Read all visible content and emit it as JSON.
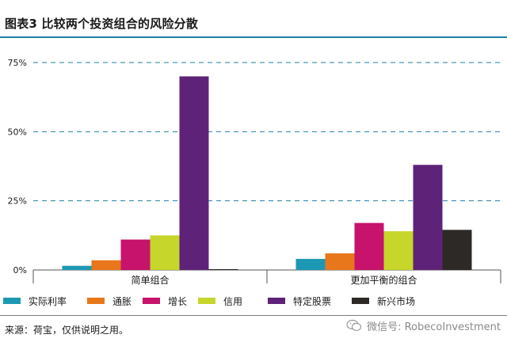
{
  "title": "图表3 比较两个投资组合的风险分散",
  "source": "来源：荷宝，仅供说明之用。",
  "watermark": {
    "text": "微信号: RobecoInvestment",
    "icon": "wechat-icon"
  },
  "colors": {
    "title_rule": "#1e7fa8",
    "grid": "#1e7fa8"
  },
  "chart_data": {
    "type": "bar",
    "title": "图表3 比较两个投资组合的风险分散",
    "xlabel": "",
    "ylabel": "",
    "categories": [
      "简单组合",
      "更加平衡的组合"
    ],
    "ylim": [
      0,
      75
    ],
    "yticks": [
      0,
      25,
      50,
      75
    ],
    "ytick_labels": [
      "0%",
      "25%",
      "50%",
      "75%"
    ],
    "grid": "dashed horizontal",
    "legend_position": "bottom",
    "series": [
      {
        "name": "实际利率",
        "color": "#1d98b4",
        "values": [
          1.5,
          4
        ]
      },
      {
        "name": "通胀",
        "color": "#e8771c",
        "values": [
          3.5,
          6
        ]
      },
      {
        "name": "增长",
        "color": "#c7136b",
        "values": [
          11,
          17
        ]
      },
      {
        "name": "信用",
        "color": "#c6d62a",
        "values": [
          12.5,
          14
        ]
      },
      {
        "name": "特定股票",
        "color": "#5e2278",
        "values": [
          70,
          38
        ]
      },
      {
        "name": "新兴市场",
        "color": "#2d2926",
        "values": [
          0.3,
          14.5
        ]
      }
    ]
  }
}
